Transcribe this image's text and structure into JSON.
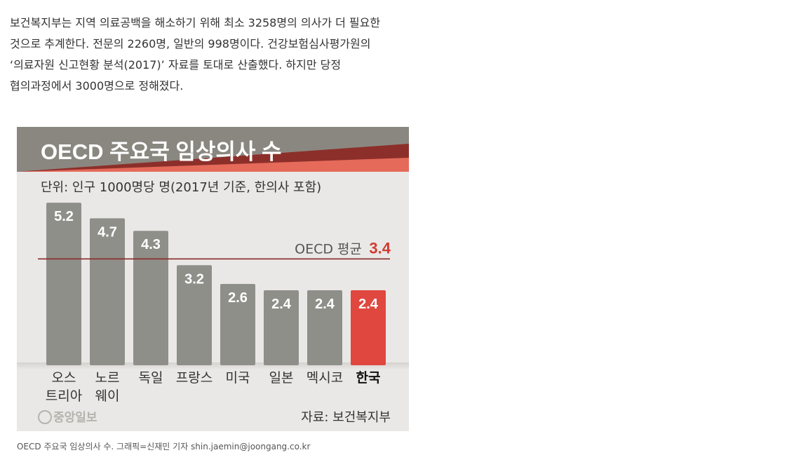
{
  "article": {
    "lines": [
      "보건복지부는 지역 의료공백을 해소하기 위해 최소 3258명의 의사가 더 필요한",
      "것으로 추계한다. 전문의 2260명, 일반의 998명이다. 건강보험심사평가원의",
      "‘의료자원 신고현황 분석(2017)’ 자료를 토대로 산출했다. 하지만 당정",
      "협의과정에서 3000명으로 정해졌다."
    ]
  },
  "chart_data": {
    "type": "bar",
    "title": "OECD 주요국 임상의사 수",
    "unit_note": "단위: 인구 1000명당 명(2017년 기준, 한의사 포함)",
    "categories": [
      [
        "오스",
        "트리아"
      ],
      [
        "노르",
        "웨이"
      ],
      [
        "독일"
      ],
      [
        "프랑스"
      ],
      [
        "미국"
      ],
      [
        "일본"
      ],
      [
        "멕시코"
      ],
      [
        "한국"
      ]
    ],
    "values": [
      5.2,
      4.7,
      4.3,
      3.2,
      2.6,
      2.4,
      2.4,
      2.4
    ],
    "value_labels": [
      "5.2",
      "4.7",
      "4.3",
      "3.2",
      "2.6",
      "2.4",
      "2.4",
      "2.4"
    ],
    "highlight_index": 7,
    "reference_line": {
      "label": "OECD 평균",
      "value": 3.4,
      "value_label": "3.4"
    },
    "ylim": [
      0,
      6
    ],
    "grid": false,
    "source": "자료: 보건복지부",
    "logo_text": "중앙일보",
    "colors": {
      "bar": "#8f8f8a",
      "highlight": "#e0473f",
      "reference_line": "#8b2a2a",
      "background": "#e9e8e6",
      "banner_gray": "#8a8780",
      "banner_dark_red": "#8c2f2a",
      "banner_red": "#e56a5a"
    }
  },
  "caption": "OECD 주요국 임상의사 수. 그래픽=신재민 기자 shin.jaemin@joongang.co.kr"
}
